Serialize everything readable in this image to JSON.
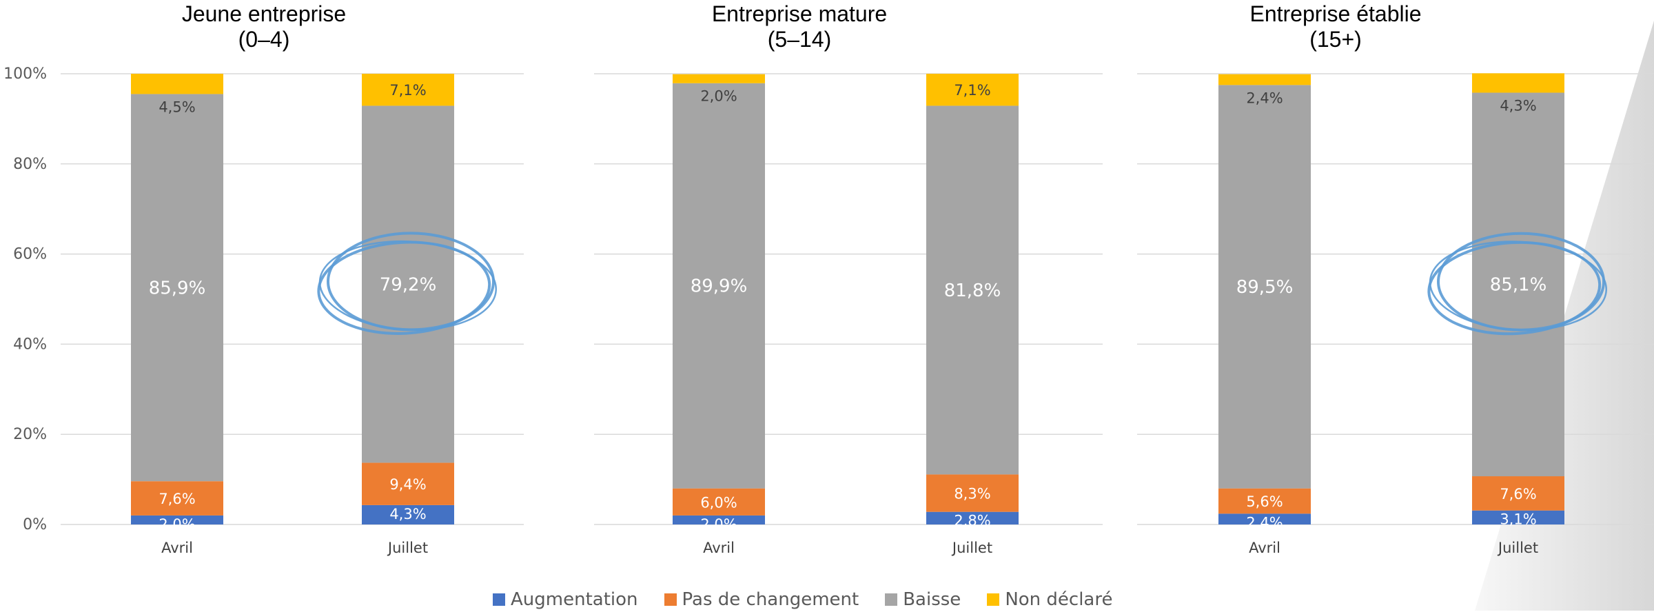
{
  "chart_data": [
    {
      "type": "bar",
      "stacked": true,
      "title": [
        "Jeune entreprise",
        "(0–4)"
      ],
      "categories": [
        "Avril",
        "Juillet"
      ],
      "series": [
        {
          "name": "Augmentation",
          "values": [
            2.0,
            4.3
          ],
          "labels": [
            "2,0%",
            "4,3%"
          ]
        },
        {
          "name": "Pas de changement",
          "values": [
            7.6,
            9.4
          ],
          "labels": [
            "7,6%",
            "9,4%"
          ]
        },
        {
          "name": "Baisse",
          "values": [
            85.9,
            79.2
          ],
          "labels": [
            "85,9%",
            "79,2%"
          ]
        },
        {
          "name": "Non déclaré",
          "values": [
            4.5,
            7.1
          ],
          "labels": [
            "4,5%",
            "7,1%"
          ]
        }
      ],
      "yticks": [
        "0%",
        "20%",
        "40%",
        "60%",
        "80%",
        "100%"
      ],
      "ylim": [
        0,
        100
      ],
      "grid": true,
      "highlight": {
        "category": "Juillet",
        "series": "Baisse"
      }
    },
    {
      "type": "bar",
      "stacked": true,
      "title": [
        "Entreprise mature",
        "(5–14)"
      ],
      "categories": [
        "Avril",
        "Juillet"
      ],
      "series": [
        {
          "name": "Augmentation",
          "values": [
            2.0,
            2.8
          ],
          "labels": [
            "2,0%",
            "2,8%"
          ]
        },
        {
          "name": "Pas de changement",
          "values": [
            6.0,
            8.3
          ],
          "labels": [
            "6,0%",
            "8,3%"
          ]
        },
        {
          "name": "Baisse",
          "values": [
            89.9,
            81.8
          ],
          "labels": [
            "89,9%",
            "81,8%"
          ]
        },
        {
          "name": "Non déclaré",
          "values": [
            2.0,
            7.1
          ],
          "labels": [
            "2,0%",
            "7,1%"
          ]
        }
      ],
      "ylim": [
        0,
        100
      ],
      "grid": true
    },
    {
      "type": "bar",
      "stacked": true,
      "title": [
        "Entreprise établie",
        "(15+)"
      ],
      "categories": [
        "Avril",
        "Juillet"
      ],
      "series": [
        {
          "name": "Augmentation",
          "values": [
            2.4,
            3.1
          ],
          "labels": [
            "2,4%",
            "3,1%"
          ]
        },
        {
          "name": "Pas de changement",
          "values": [
            5.6,
            7.6
          ],
          "labels": [
            "5,6%",
            "7,6%"
          ]
        },
        {
          "name": "Baisse",
          "values": [
            89.5,
            85.1
          ],
          "labels": [
            "89,5%",
            "85,1%"
          ]
        },
        {
          "name": "Non déclaré",
          "values": [
            2.4,
            4.3
          ],
          "labels": [
            "2,4%",
            "4,3%"
          ]
        }
      ],
      "ylim": [
        0,
        100
      ],
      "grid": true,
      "highlight": {
        "category": "Juillet",
        "series": "Baisse"
      }
    }
  ],
  "legend": {
    "placement": "bottom",
    "items": [
      {
        "name": "Augmentation",
        "color": "#4472C4"
      },
      {
        "name": "Pas de changement",
        "color": "#ED7D31"
      },
      {
        "name": "Baisse",
        "color": "#A5A5A5"
      },
      {
        "name": "Non déclaré",
        "color": "#FFC000"
      }
    ]
  },
  "colors": {
    "Augmentation": "#4472C4",
    "Pas de changement": "#ED7D31",
    "Baisse": "#A5A5A5",
    "Non déclaré": "#FFC000",
    "highlight_circle": "#5B9BD5"
  }
}
